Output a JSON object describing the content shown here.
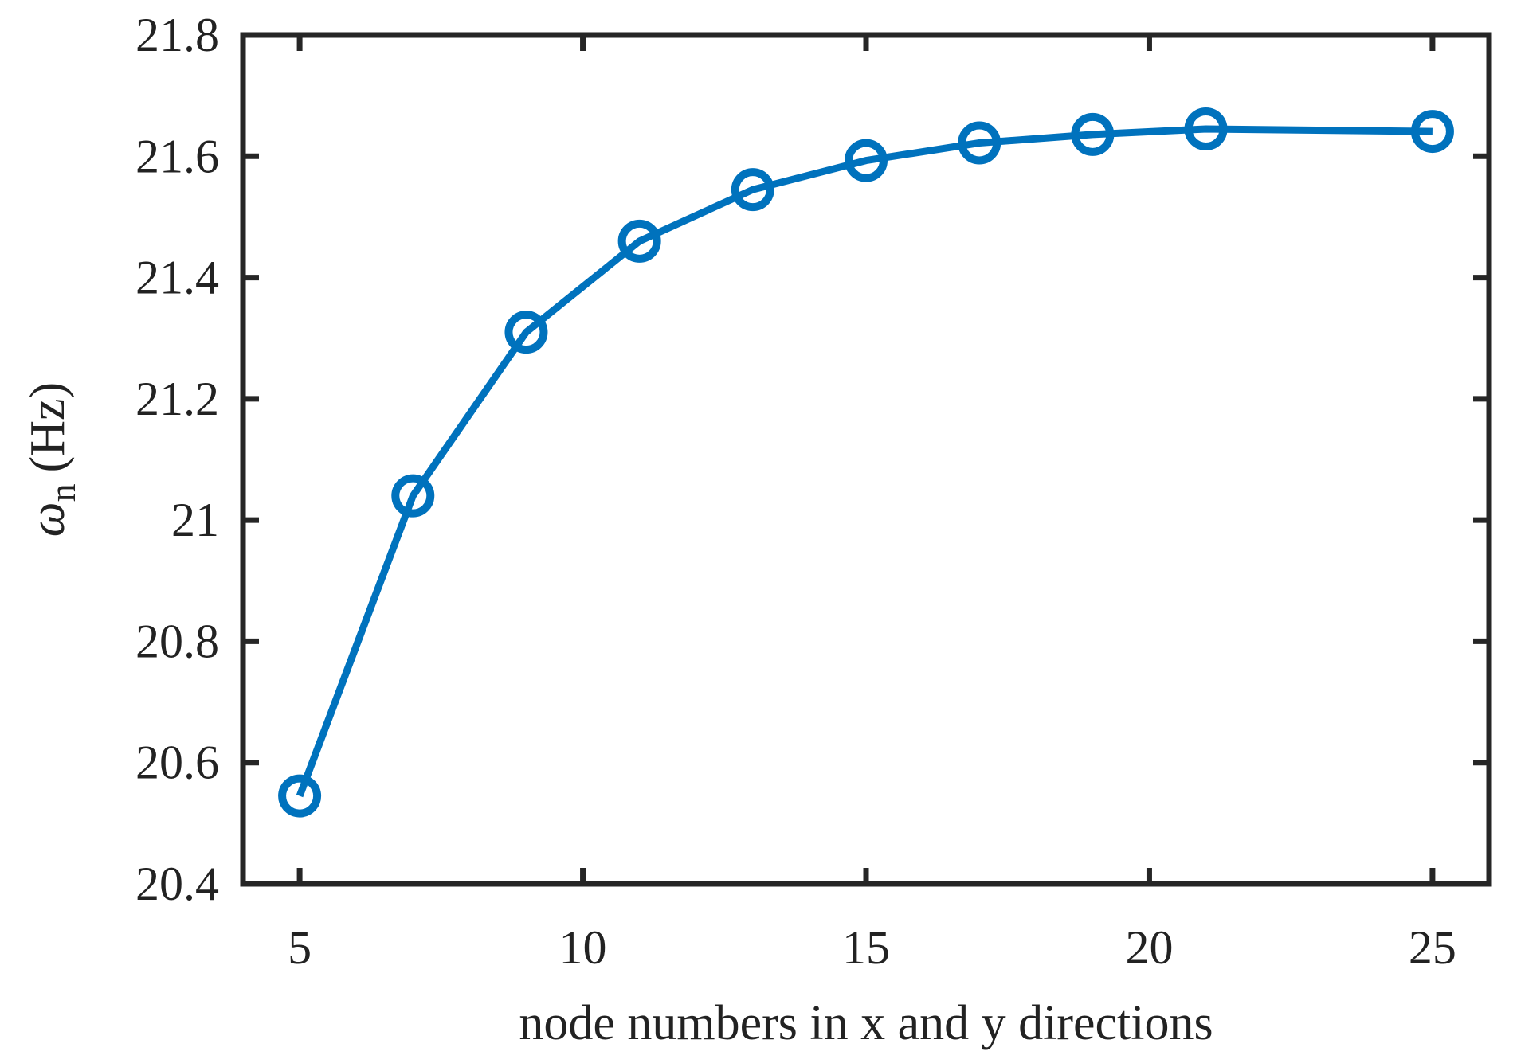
{
  "chart_data": {
    "type": "line",
    "title": "",
    "xlabel": "node numbers in x and y directions",
    "ylabel_symbol": "ω",
    "ylabel_subscript": "n",
    "ylabel_unit": "(Hz)",
    "xlim": [
      4,
      26
    ],
    "ylim": [
      20.4,
      21.8
    ],
    "xticks": [
      5,
      10,
      15,
      20,
      25
    ],
    "yticks": [
      20.4,
      20.6,
      20.8,
      21,
      21.2,
      21.4,
      21.6,
      21.8
    ],
    "grid": false,
    "series": [
      {
        "marker": "circle",
        "color": "#0072BD",
        "x": [
          5,
          7,
          9,
          11,
          13,
          15,
          17,
          19,
          21,
          25
        ],
        "y": [
          20.545,
          21.04,
          21.31,
          21.46,
          21.545,
          21.593,
          21.622,
          21.636,
          21.645,
          21.641
        ]
      }
    ]
  }
}
